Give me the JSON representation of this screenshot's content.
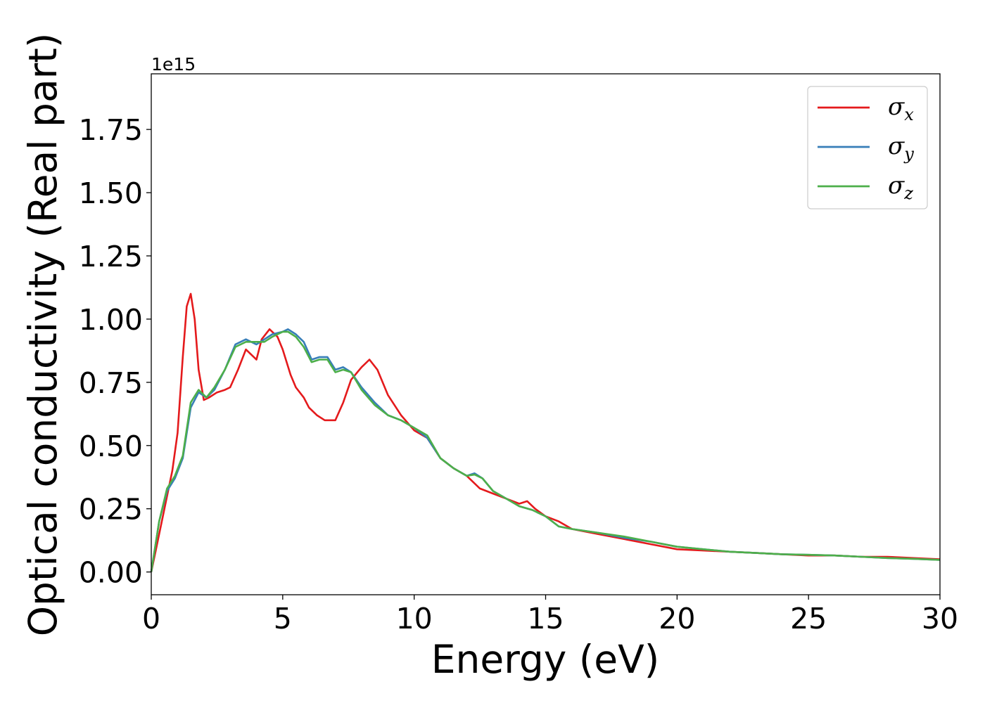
{
  "chart_data": {
    "type": "line",
    "xlabel": "Energy (eV)",
    "ylabel": "Optical conductivity (Real part)",
    "y_offset_label": "1e15",
    "xlim": [
      0,
      30
    ],
    "ylim": [
      -0.09,
      1.97
    ],
    "y_scale_factor": 1000000000000000.0,
    "xticks": [
      0,
      5,
      10,
      15,
      20,
      25,
      30
    ],
    "xtick_labels": [
      "0",
      "5",
      "10",
      "15",
      "20",
      "25",
      "30"
    ],
    "yticks": [
      0.0,
      0.25,
      0.5,
      0.75,
      1.0,
      1.25,
      1.5,
      1.75
    ],
    "ytick_labels": [
      "0.00",
      "0.25",
      "0.50",
      "0.75",
      "1.00",
      "1.25",
      "1.50",
      "1.75"
    ],
    "grid": false,
    "legend_position": "top-right",
    "series": [
      {
        "name": "σx",
        "name_base": "σ",
        "name_sub": "x",
        "color": "#e41a1c",
        "x": [
          0,
          0.2,
          0.5,
          0.8,
          1.0,
          1.2,
          1.35,
          1.5,
          1.65,
          1.8,
          2.0,
          2.2,
          2.5,
          2.8,
          3.0,
          3.3,
          3.6,
          3.8,
          4.0,
          4.2,
          4.5,
          4.8,
          5.0,
          5.3,
          5.5,
          5.8,
          6.0,
          6.3,
          6.6,
          7.0,
          7.3,
          7.6,
          8.0,
          8.3,
          8.6,
          9.0,
          9.5,
          10.0,
          10.5,
          11.0,
          11.5,
          12.0,
          12.5,
          13.0,
          13.5,
          14.0,
          14.3,
          14.6,
          15.0,
          15.5,
          16.0,
          17.0,
          18.0,
          19.0,
          20.0,
          21.0,
          22.0,
          23.0,
          24.0,
          25.0,
          26.0,
          27.0,
          28.0,
          29.0,
          30.0
        ],
        "y": [
          0.0,
          0.1,
          0.25,
          0.4,
          0.55,
          0.85,
          1.05,
          1.1,
          1.0,
          0.8,
          0.68,
          0.69,
          0.71,
          0.72,
          0.73,
          0.8,
          0.88,
          0.86,
          0.84,
          0.92,
          0.96,
          0.93,
          0.88,
          0.78,
          0.73,
          0.69,
          0.65,
          0.62,
          0.6,
          0.6,
          0.67,
          0.76,
          0.81,
          0.84,
          0.8,
          0.7,
          0.62,
          0.56,
          0.53,
          0.45,
          0.41,
          0.38,
          0.33,
          0.31,
          0.29,
          0.27,
          0.28,
          0.25,
          0.22,
          0.2,
          0.17,
          0.15,
          0.13,
          0.11,
          0.09,
          0.085,
          0.08,
          0.075,
          0.07,
          0.065,
          0.065,
          0.06,
          0.06,
          0.055,
          0.05
        ]
      },
      {
        "name": "σy",
        "name_base": "σ",
        "name_sub": "y",
        "color": "#377eb8",
        "x": [
          0,
          0.3,
          0.6,
          0.9,
          1.2,
          1.5,
          1.8,
          2.1,
          2.4,
          2.8,
          3.2,
          3.6,
          4.0,
          4.3,
          4.6,
          5.0,
          5.2,
          5.5,
          5.8,
          6.1,
          6.4,
          6.7,
          7.0,
          7.3,
          7.6,
          8.0,
          8.5,
          9.0,
          9.5,
          10.0,
          10.5,
          11.0,
          11.5,
          12.0,
          12.3,
          12.6,
          13.0,
          13.5,
          14.0,
          14.5,
          15.0,
          15.5,
          16.0,
          17.0,
          18.0,
          19.0,
          20.0,
          21.0,
          22.0,
          23.0,
          24.0,
          25.0,
          26.0,
          27.0,
          28.0,
          29.0,
          30.0
        ],
        "y": [
          0.0,
          0.2,
          0.32,
          0.37,
          0.45,
          0.65,
          0.71,
          0.69,
          0.72,
          0.8,
          0.9,
          0.92,
          0.9,
          0.92,
          0.94,
          0.95,
          0.96,
          0.94,
          0.91,
          0.84,
          0.85,
          0.85,
          0.8,
          0.81,
          0.79,
          0.73,
          0.67,
          0.62,
          0.6,
          0.57,
          0.53,
          0.45,
          0.41,
          0.38,
          0.39,
          0.37,
          0.32,
          0.29,
          0.26,
          0.245,
          0.22,
          0.18,
          0.17,
          0.155,
          0.135,
          0.12,
          0.1,
          0.09,
          0.08,
          0.075,
          0.07,
          0.068,
          0.065,
          0.06,
          0.055,
          0.052,
          0.048
        ]
      },
      {
        "name": "σz",
        "name_base": "σ",
        "name_sub": "z",
        "color": "#4daf4a",
        "x": [
          0,
          0.3,
          0.6,
          0.9,
          1.2,
          1.5,
          1.8,
          2.1,
          2.4,
          2.8,
          3.2,
          3.6,
          4.0,
          4.3,
          4.6,
          5.0,
          5.2,
          5.5,
          5.8,
          6.1,
          6.4,
          6.7,
          7.0,
          7.3,
          7.6,
          8.0,
          8.5,
          9.0,
          9.5,
          10.0,
          10.5,
          11.0,
          11.5,
          12.0,
          12.3,
          12.6,
          13.0,
          13.5,
          14.0,
          14.5,
          15.0,
          15.5,
          16.0,
          17.0,
          18.0,
          19.0,
          20.0,
          21.0,
          22.0,
          23.0,
          24.0,
          25.0,
          26.0,
          27.0,
          28.0,
          29.0,
          30.0
        ],
        "y": [
          0.0,
          0.2,
          0.33,
          0.38,
          0.46,
          0.67,
          0.72,
          0.69,
          0.73,
          0.8,
          0.89,
          0.91,
          0.91,
          0.91,
          0.93,
          0.95,
          0.95,
          0.93,
          0.89,
          0.83,
          0.84,
          0.84,
          0.79,
          0.8,
          0.79,
          0.72,
          0.66,
          0.62,
          0.6,
          0.57,
          0.54,
          0.45,
          0.41,
          0.38,
          0.385,
          0.37,
          0.32,
          0.29,
          0.26,
          0.245,
          0.22,
          0.18,
          0.17,
          0.155,
          0.14,
          0.12,
          0.1,
          0.09,
          0.08,
          0.075,
          0.07,
          0.068,
          0.065,
          0.06,
          0.055,
          0.052,
          0.048
        ]
      }
    ]
  }
}
